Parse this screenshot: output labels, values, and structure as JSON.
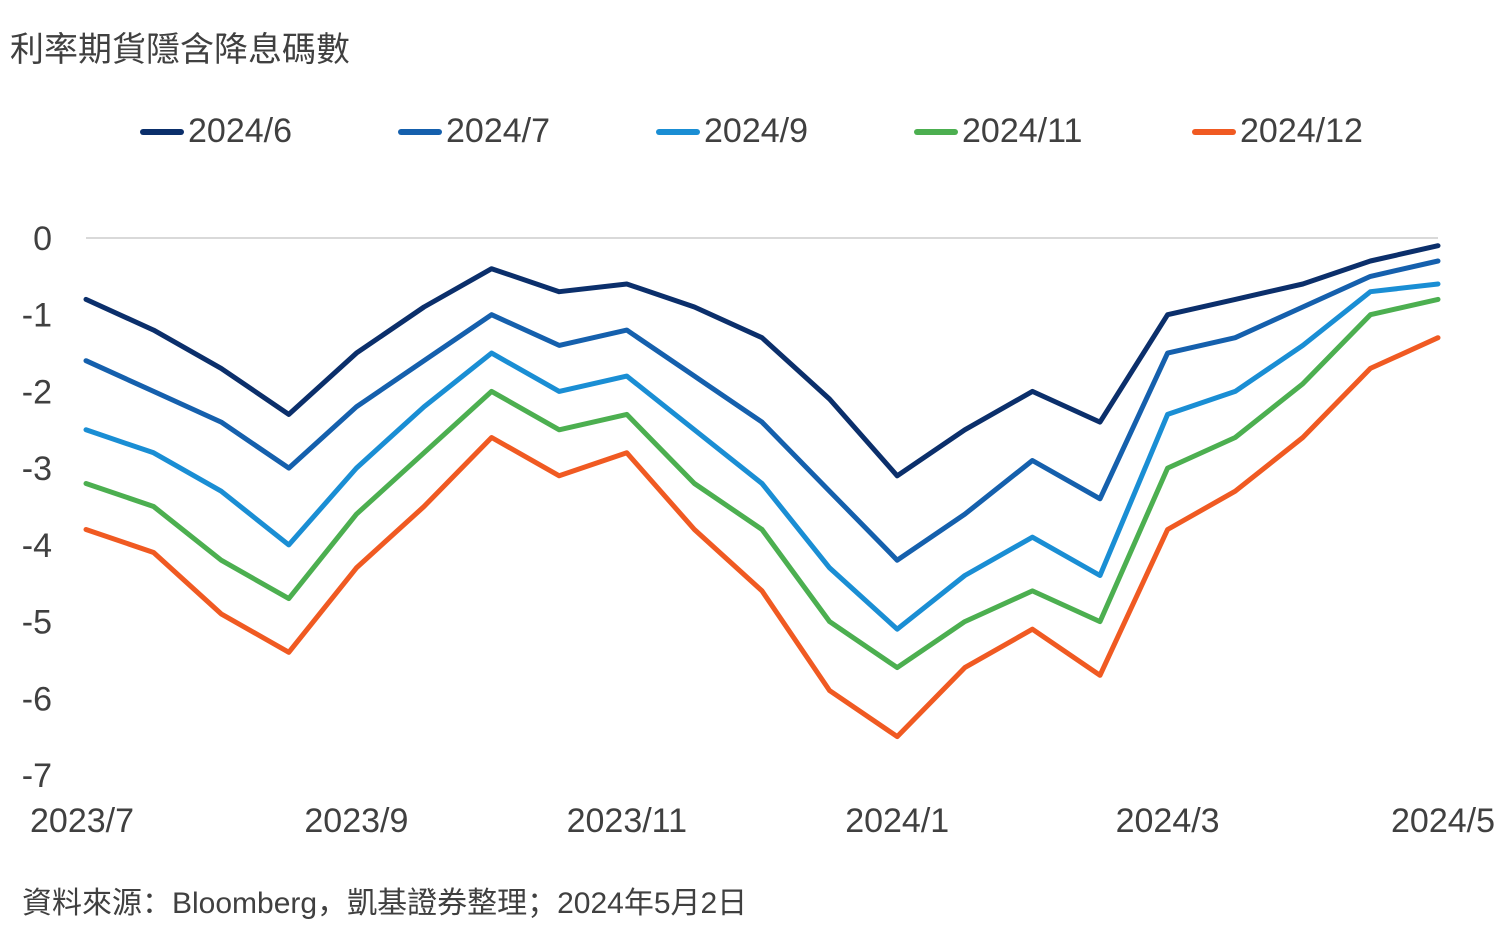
{
  "chart_title": "利率期貨隱含降息碼數",
  "source_note": "資料來源：Bloomberg，凱基證券整理；2024年5月2日",
  "chart_data": {
    "type": "line",
    "x_tick_labels": [
      "2023/7",
      "2023/9",
      "2023/11",
      "2024/1",
      "2024/3",
      "2024/5"
    ],
    "ylim": [
      -7,
      0
    ],
    "yticks": [
      0,
      -1,
      -2,
      -3,
      -4,
      -5,
      -6,
      -7
    ],
    "grid": false,
    "legend_position": "top",
    "x": [
      "2023/7/1",
      "2023/7/15",
      "2023/8/1",
      "2023/8/15",
      "2023/9/1",
      "2023/9/15",
      "2023/10/1",
      "2023/10/15",
      "2023/11/1",
      "2023/11/15",
      "2023/12/1",
      "2023/12/15",
      "2024/1/1",
      "2024/1/15",
      "2024/2/1",
      "2024/2/15",
      "2024/3/1",
      "2024/3/15",
      "2024/4/1",
      "2024/4/15",
      "2024/5/1"
    ],
    "series": [
      {
        "name": "2024/6",
        "color": "#0b2f6b",
        "values": [
          -0.8,
          -1.2,
          -1.7,
          -2.3,
          -1.5,
          -0.9,
          -0.4,
          -0.7,
          -0.6,
          -0.9,
          -1.3,
          -2.1,
          -3.1,
          -2.5,
          -2.0,
          -2.4,
          -1.0,
          -0.8,
          -0.6,
          -0.3,
          -0.1
        ]
      },
      {
        "name": "2024/7",
        "color": "#1560ad",
        "values": [
          -1.6,
          -2.0,
          -2.4,
          -3.0,
          -2.2,
          -1.6,
          -1.0,
          -1.4,
          -1.2,
          -1.8,
          -2.4,
          -3.3,
          -4.2,
          -3.6,
          -2.9,
          -3.4,
          -1.5,
          -1.3,
          -0.9,
          -0.5,
          -0.3
        ]
      },
      {
        "name": "2024/9",
        "color": "#1a8ed4",
        "values": [
          -2.5,
          -2.8,
          -3.3,
          -4.0,
          -3.0,
          -2.2,
          -1.5,
          -2.0,
          -1.8,
          -2.5,
          -3.2,
          -4.3,
          -5.1,
          -4.4,
          -3.9,
          -4.4,
          -2.3,
          -2.0,
          -1.4,
          -0.7,
          -0.6
        ]
      },
      {
        "name": "2024/11",
        "color": "#4caf50",
        "values": [
          -3.2,
          -3.5,
          -4.2,
          -4.7,
          -3.6,
          -2.8,
          -2.0,
          -2.5,
          -2.3,
          -3.2,
          -3.8,
          -5.0,
          -5.6,
          -5.0,
          -4.6,
          -5.0,
          -3.0,
          -2.6,
          -1.9,
          -1.0,
          -0.8
        ]
      },
      {
        "name": "2024/12",
        "color": "#f05a22",
        "values": [
          -3.8,
          -4.1,
          -4.9,
          -5.4,
          -4.3,
          -3.5,
          -2.6,
          -3.1,
          -2.8,
          -3.8,
          -4.6,
          -5.9,
          -6.5,
          -5.6,
          -5.1,
          -5.7,
          -3.8,
          -3.3,
          -2.6,
          -1.7,
          -1.3
        ]
      }
    ]
  }
}
